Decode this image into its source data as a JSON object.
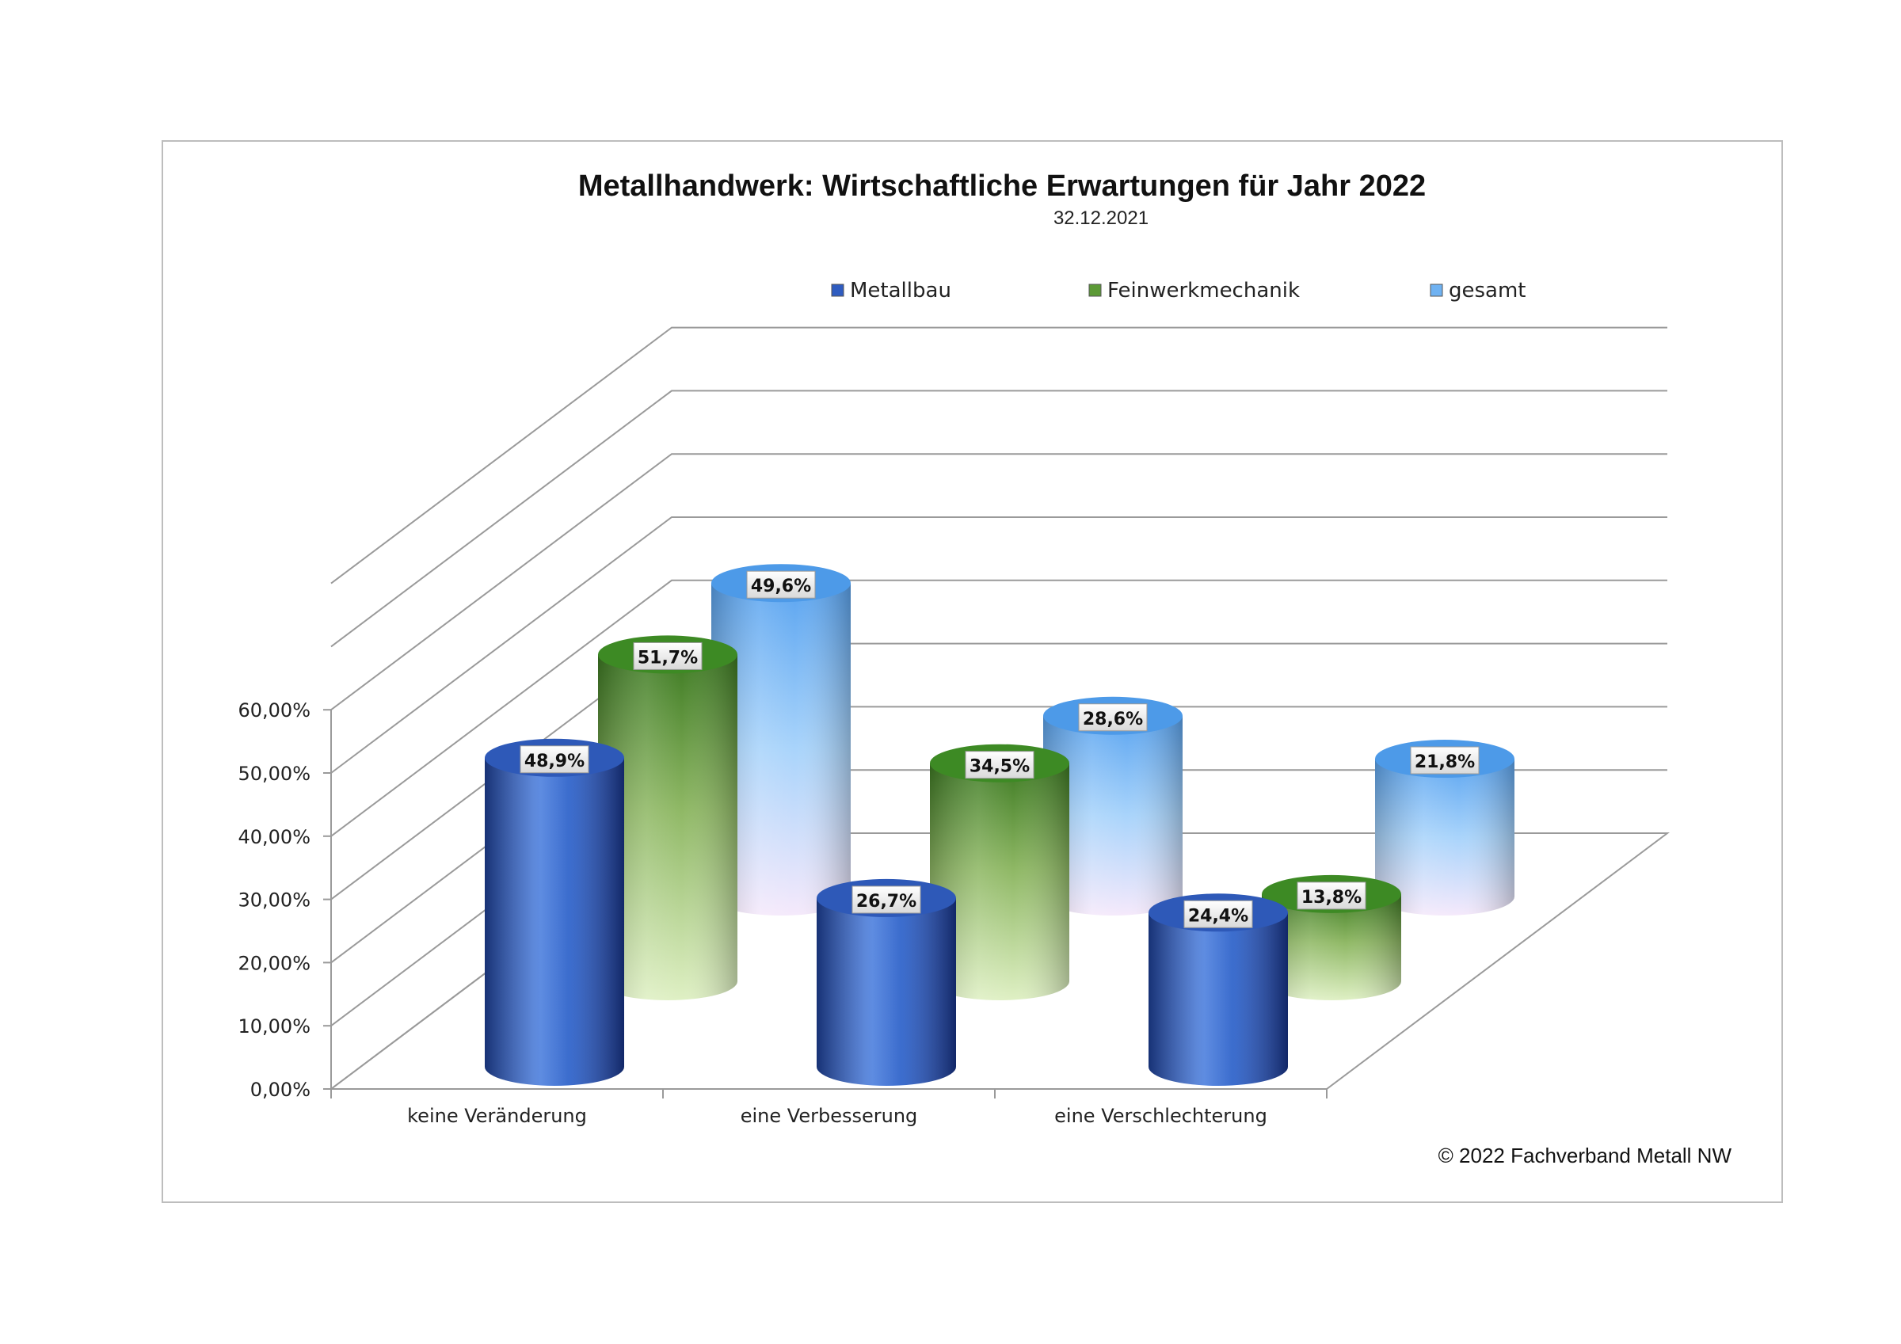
{
  "chart_data": {
    "type": "bar",
    "title": "Metallhandwerk: Wirtschaftliche Erwartungen für Jahr 2022",
    "subtitle": "32.12.2021",
    "categories": [
      "keine Veränderung",
      "eine Verbesserung",
      "eine Verschlechterung"
    ],
    "series": [
      {
        "name": "Metallbau",
        "values": [
          48.9,
          26.7,
          24.4
        ],
        "labels": [
          "48,9%",
          "26,7%",
          "24,4%"
        ]
      },
      {
        "name": "Feinwerkmechanik",
        "values": [
          51.7,
          34.5,
          13.8
        ],
        "labels": [
          "51,7%",
          "34,5%",
          "13,8%"
        ]
      },
      {
        "name": "gesamt",
        "values": [
          49.6,
          28.6,
          21.8
        ],
        "labels": [
          "49,6%",
          "28,6%",
          "21,8%"
        ]
      }
    ],
    "y_ticks": [
      "0,00%",
      "10,00%",
      "20,00%",
      "30,00%",
      "40,00%",
      "50,00%",
      "60,00%"
    ],
    "ylim": [
      0,
      60
    ],
    "legend_position": "top",
    "grid": true,
    "style": "3d-cylinder",
    "colors": {
      "Metallbau": "#3f6fcf",
      "Feinwerkmechanik": "#78a84a",
      "gesamt": "#8cc4f6"
    },
    "copyright": "© 2022 Fachverband Metall NW"
  }
}
